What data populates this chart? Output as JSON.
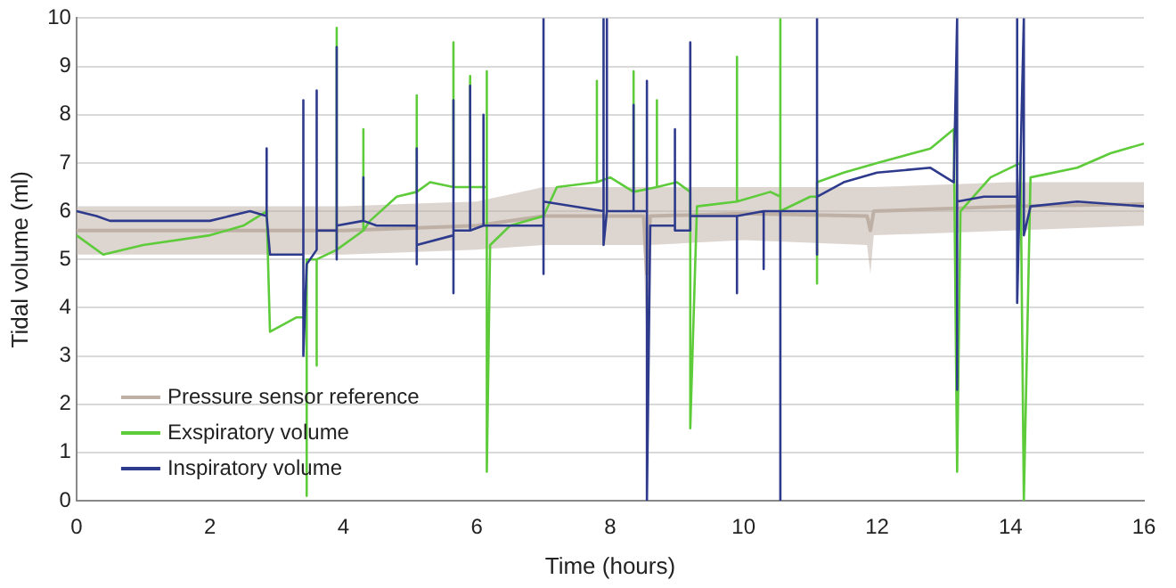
{
  "chart_data": {
    "type": "line",
    "xlabel": "Time (hours)",
    "ylabel": "Tidal volume (ml)",
    "xlim": [
      0,
      16
    ],
    "xticks": [
      0,
      2,
      4,
      6,
      8,
      10,
      12,
      14,
      16
    ],
    "ylim": [
      0,
      10
    ],
    "yticks": [
      0,
      1,
      2,
      3,
      4,
      5,
      6,
      7,
      8,
      9,
      10
    ],
    "grid": "y",
    "legend": "bottom left",
    "marker": "none",
    "line_style": "solid",
    "series": [
      {
        "name": "Pressure sensor reference",
        "color": "#bfb0a6",
        "x": [
          0,
          2,
          4,
          6,
          7,
          8.5,
          8.55,
          8.6,
          10,
          11.85,
          11.9,
          11.95,
          14,
          16
        ],
        "values": [
          5.6,
          5.6,
          5.6,
          5.7,
          5.9,
          5.9,
          4.7,
          5.9,
          5.95,
          5.9,
          5.6,
          6.0,
          6.1,
          6.15
        ],
        "lower": [
          5.1,
          5.1,
          5.1,
          5.2,
          5.3,
          5.3,
          2.9,
          5.3,
          5.4,
          5.3,
          4.7,
          5.5,
          5.6,
          5.7
        ],
        "upper": [
          6.1,
          6.1,
          6.1,
          6.2,
          6.5,
          6.5,
          6.5,
          6.5,
          6.5,
          6.5,
          6.5,
          6.5,
          6.6,
          6.6
        ]
      },
      {
        "name": "Exspiratory volume",
        "color": "#5ecb3a",
        "x": [
          0,
          0.4,
          1,
          2,
          2.5,
          2.85,
          2.9,
          3.3,
          3.4,
          3.45,
          3.45,
          3.45,
          3.6,
          3.6,
          3.6,
          3.9,
          3.9,
          3.9,
          4.3,
          4.3,
          4.3,
          4.4,
          4.8,
          5.1,
          5.1,
          5.1,
          5.3,
          5.65,
          5.65,
          5.65,
          5.9,
          5.9,
          5.9,
          6.15,
          6.15,
          6.15,
          6.2,
          6.5,
          7.0,
          7.2,
          7.8,
          7.8,
          7.8,
          8.0,
          8.35,
          8.35,
          8.35,
          8.7,
          8.7,
          8.7,
          9.0,
          9.2,
          9.2,
          9.3,
          9.9,
          9.9,
          9.9,
          10.4,
          10.55,
          10.55,
          10.55,
          11.0,
          11.1,
          11.1,
          11.1,
          11.5,
          12,
          12.8,
          13.15,
          13.2,
          13.25,
          13.7,
          14.15,
          14.2,
          14.3,
          15,
          15.5,
          16
        ],
        "values": [
          5.5,
          5.1,
          5.3,
          5.5,
          5.7,
          6.0,
          3.5,
          3.8,
          3.8,
          3.8,
          0.1,
          5.0,
          5.0,
          2.8,
          5.0,
          5.2,
          9.8,
          5.2,
          5.6,
          7.7,
          5.6,
          5.8,
          6.3,
          6.4,
          8.4,
          6.4,
          6.6,
          6.5,
          9.5,
          6.5,
          6.5,
          8.8,
          6.5,
          6.5,
          8.9,
          0.6,
          5.3,
          5.7,
          5.9,
          6.5,
          6.6,
          8.7,
          6.6,
          6.7,
          6.4,
          8.9,
          6.4,
          6.5,
          8.3,
          6.5,
          6.6,
          6.4,
          1.5,
          6.1,
          6.2,
          9.2,
          6.2,
          6.4,
          6.3,
          10,
          6.0,
          6.3,
          6.3,
          4.5,
          6.6,
          6.8,
          7.0,
          7.3,
          7.7,
          0.6,
          6.0,
          6.7,
          7.0,
          0,
          6.7,
          6.9,
          7.2,
          7.4
        ]
      },
      {
        "name": "Inspiratory volume",
        "color": "#2e3a8c",
        "x": [
          0,
          0.3,
          0.5,
          1,
          2,
          2.6,
          2.85,
          2.85,
          2.85,
          2.9,
          3.4,
          3.4,
          3.4,
          3.45,
          3.6,
          3.6,
          3.6,
          3.9,
          3.9,
          3.9,
          3.9,
          4.3,
          4.3,
          4.3,
          4.5,
          5.1,
          5.1,
          5.1,
          5.1,
          5.65,
          5.65,
          5.65,
          5.65,
          5.9,
          5.9,
          5.9,
          6.1,
          6.1,
          6.1,
          7.0,
          7.0,
          7.0,
          7.0,
          7.9,
          7.9,
          7.9,
          7.95,
          7.95,
          7.95,
          8.35,
          8.35,
          8.35,
          8.55,
          8.55,
          8.55,
          8.6,
          8.97,
          8.97,
          8.97,
          9.2,
          9.2,
          9.2,
          9.9,
          9.9,
          9.9,
          10.3,
          10.3,
          10.3,
          10.55,
          10.55,
          10.55,
          11.1,
          11.1,
          11.1,
          11.1,
          11.5,
          12,
          12.8,
          13.15,
          13.2,
          13.2,
          13.2,
          13.6,
          14.1,
          14.1,
          14.1,
          14.2,
          14.2,
          14.3,
          15,
          16
        ],
        "values": [
          6.0,
          5.9,
          5.8,
          5.8,
          5.8,
          6.0,
          5.9,
          7.3,
          5.9,
          5.1,
          5.1,
          8.3,
          3.0,
          4.9,
          5.2,
          8.5,
          5.6,
          5.6,
          9.4,
          5.0,
          5.7,
          5.8,
          6.7,
          5.8,
          5.7,
          5.7,
          7.3,
          4.9,
          5.3,
          5.5,
          8.3,
          4.3,
          5.6,
          5.6,
          8.6,
          5.6,
          5.7,
          8.0,
          5.7,
          5.7,
          10,
          4.7,
          6.2,
          6.0,
          10,
          5.3,
          6.0,
          10,
          6.0,
          6.0,
          8.2,
          6.0,
          6.0,
          8.7,
          0,
          5.7,
          5.7,
          7.7,
          5.6,
          5.6,
          9.5,
          5.9,
          5.9,
          4.3,
          5.9,
          6.0,
          4.8,
          6.0,
          6.0,
          0,
          6.0,
          6.0,
          10,
          5.1,
          6.3,
          6.6,
          6.8,
          6.9,
          6.6,
          10,
          2.3,
          6.2,
          6.3,
          6.3,
          10,
          4.1,
          10,
          5.5,
          6.1,
          6.2,
          6.1
        ]
      }
    ]
  }
}
